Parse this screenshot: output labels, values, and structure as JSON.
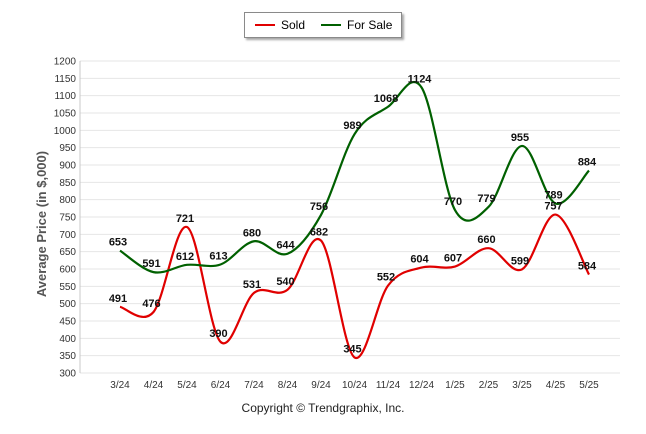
{
  "legend": {
    "sold_label": "Sold",
    "for_sale_label": "For Sale"
  },
  "copyright": "Copyright © Trendgraphix, Inc.",
  "colors": {
    "sold": "#e00000",
    "for_sale": "#006000",
    "grid": "#e6e6e6"
  },
  "chart_data": {
    "type": "line",
    "title": "",
    "xlabel": "",
    "ylabel": "Average Price (in $,000)",
    "ylim": [
      300,
      1200
    ],
    "ytick_step": 50,
    "grid": true,
    "legend_position": "top-center",
    "categories": [
      "3/24",
      "4/24",
      "5/24",
      "6/24",
      "7/24",
      "8/24",
      "9/24",
      "10/24",
      "11/24",
      "12/24",
      "1/25",
      "2/25",
      "3/25",
      "4/25",
      "5/25"
    ],
    "series": [
      {
        "name": "Sold",
        "values": [
          491,
          476,
          721,
          390,
          531,
          540,
          682,
          345,
          552,
          604,
          607,
          660,
          599,
          757,
          584
        ]
      },
      {
        "name": "For Sale",
        "values": [
          653,
          591,
          612,
          613,
          680,
          644,
          756,
          989,
          1068,
          1124,
          770,
          779,
          955,
          789,
          884
        ]
      }
    ]
  }
}
